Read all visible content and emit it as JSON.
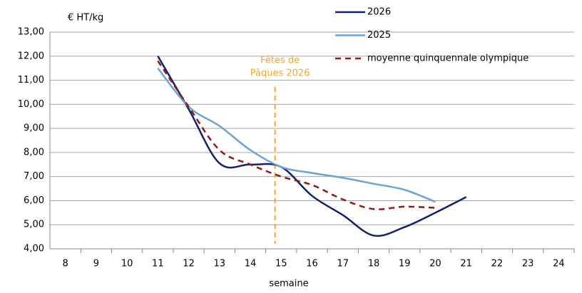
{
  "chart_data": {
    "type": "line",
    "y_label": "€ HT/kg",
    "x_label": "semaine",
    "categories": [
      "8",
      "9",
      "10",
      "11",
      "12",
      "13",
      "14",
      "15",
      "16",
      "17",
      "18",
      "19",
      "20",
      "21",
      "22",
      "23",
      "24"
    ],
    "series": [
      {
        "name": "2026",
        "color": "#14216b",
        "dash": false,
        "values": [
          null,
          null,
          null,
          12.0,
          9.8,
          7.55,
          7.5,
          7.4,
          6.2,
          5.4,
          4.55,
          4.9,
          5.5,
          6.15,
          null,
          null,
          null
        ]
      },
      {
        "name": "2025",
        "color": "#6aa3d8",
        "dash": false,
        "values": [
          null,
          null,
          null,
          11.5,
          9.9,
          9.1,
          8.1,
          7.4,
          7.15,
          6.95,
          6.7,
          6.45,
          5.95,
          null,
          null,
          null,
          null
        ]
      },
      {
        "name": "moyenne quinquennale olympique",
        "color": "#8b1a1a",
        "dash": true,
        "values": [
          null,
          null,
          null,
          11.8,
          9.9,
          8.1,
          7.5,
          7.0,
          6.65,
          6.05,
          5.65,
          5.75,
          5.7,
          null,
          null,
          null,
          null
        ]
      }
    ],
    "annotation": {
      "lines": [
        "Fêtes de",
        "Pâques 2026"
      ],
      "category": "15",
      "color": "#f5a623"
    },
    "ylim": [
      4,
      13
    ],
    "yticks": [
      {
        "value": 4,
        "label": "4,00"
      },
      {
        "value": 5,
        "label": "5,00"
      },
      {
        "value": 6,
        "label": "6,00"
      },
      {
        "value": 7,
        "label": "7,00"
      },
      {
        "value": 8,
        "label": "8,00"
      },
      {
        "value": 9,
        "label": "9,00"
      },
      {
        "value": 10,
        "label": "10,00"
      },
      {
        "value": 11,
        "label": "11,00"
      },
      {
        "value": 12,
        "label": "12,00"
      },
      {
        "value": 13,
        "label": "13,00"
      }
    ],
    "grid": true,
    "legend": "top-right"
  }
}
